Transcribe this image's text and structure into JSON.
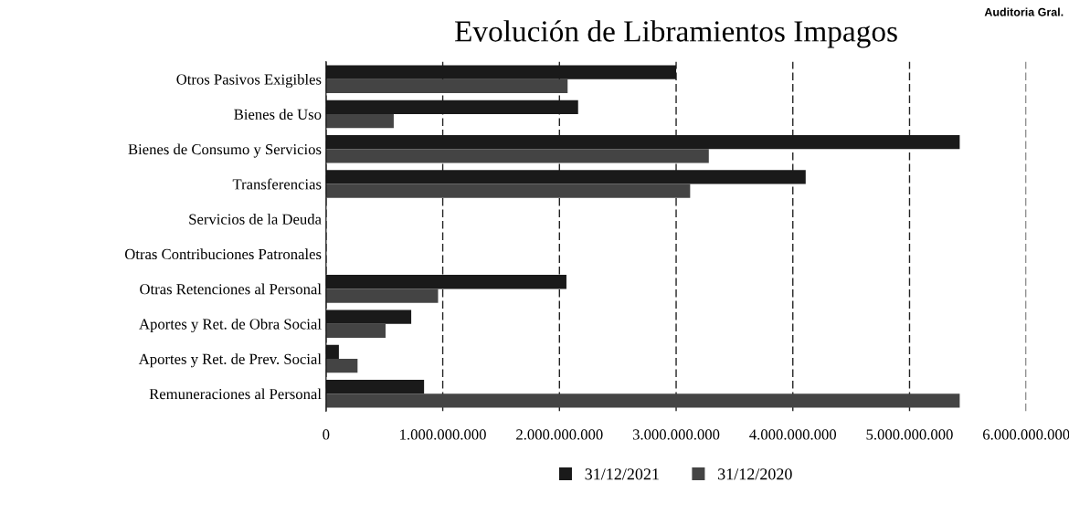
{
  "chart_data": {
    "type": "bar",
    "orientation": "horizontal",
    "title": "Evolución de Libramientos Impagos",
    "categories": [
      "Otros Pasivos Exigibles",
      "Bienes de Uso",
      "Bienes de Consumo y Servicios",
      "Transferencias",
      "Servicios de la Deuda",
      "Otras Contribuciones Patronales",
      "Otras Retenciones al Personal",
      "Aportes y Ret. de Obra Social",
      "Aportes y Ret. de Prev. Social",
      "Remuneraciones al Personal"
    ],
    "series": [
      {
        "name": "31/12/2021",
        "color": "#1a1a1a",
        "values": [
          3000000000,
          2160000000,
          5430000000,
          4110000000,
          0,
          0,
          2060000000,
          730000000,
          110000000,
          840000000
        ]
      },
      {
        "name": "31/12/2020",
        "color": "#444444",
        "values": [
          2070000000,
          580000000,
          3280000000,
          3120000000,
          0,
          0,
          960000000,
          510000000,
          270000000,
          5430000000
        ]
      }
    ],
    "xlim": [
      0,
      6000000000
    ],
    "xticks": [
      {
        "value": 0,
        "label": "0"
      },
      {
        "value": 1000000000,
        "label": "1.000.000.000"
      },
      {
        "value": 2000000000,
        "label": "2.000.000.000"
      },
      {
        "value": 3000000000,
        "label": "3.000.000.000"
      },
      {
        "value": 4000000000,
        "label": "4.000.000.000"
      },
      {
        "value": 5000000000,
        "label": "5.000.000.000"
      },
      {
        "value": 6000000000,
        "label": "6.000.000.000"
      }
    ],
    "grid": "x",
    "legend": "bottom",
    "annotations": [
      "Auditoria Gral."
    ]
  }
}
